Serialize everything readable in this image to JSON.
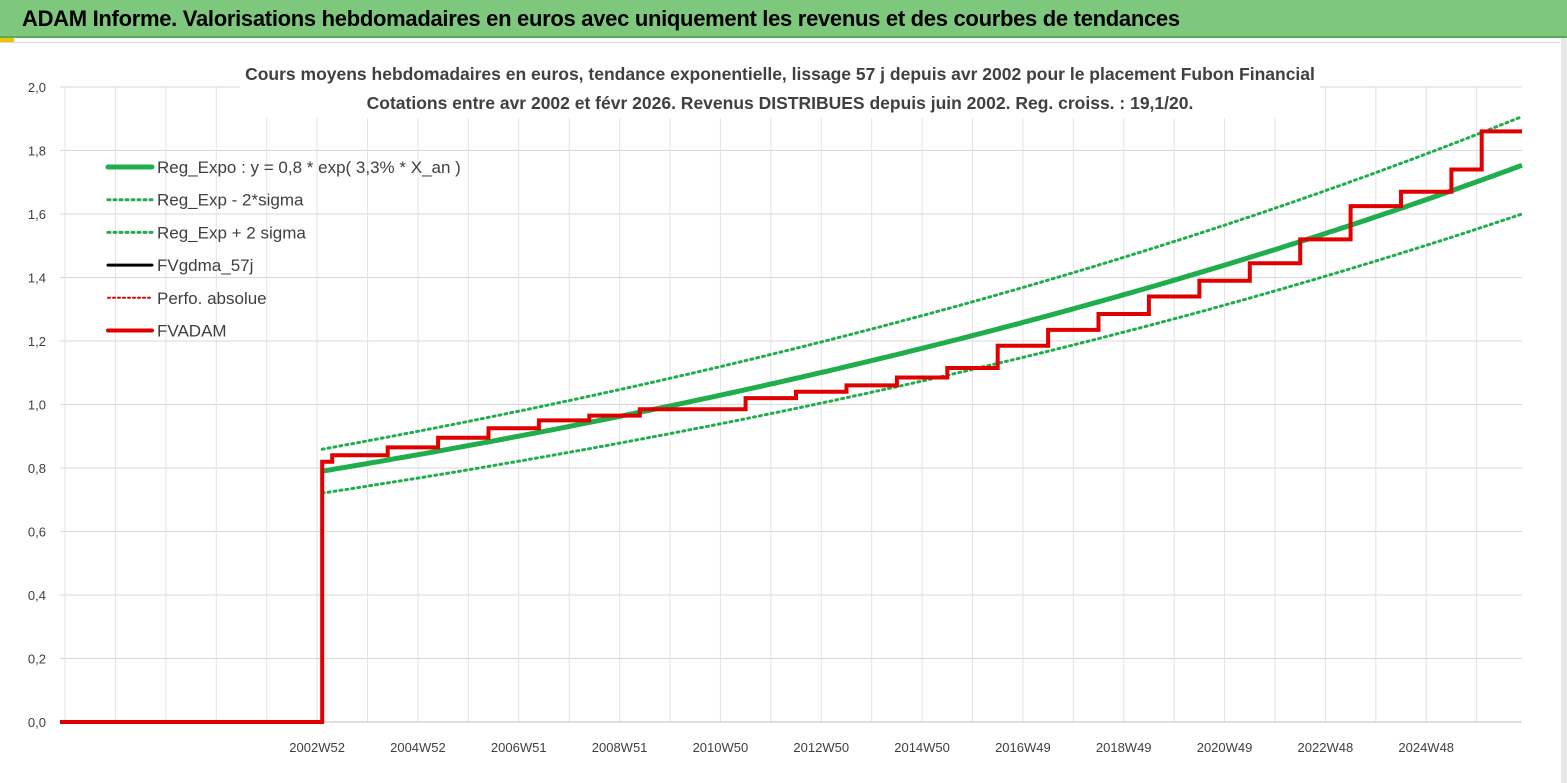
{
  "header": {
    "title": "ADAM Informe. Valorisations hebdomadaires en euros avec uniquement les revenus et des courbes de tendances"
  },
  "chart_data": {
    "type": "line",
    "title_line1": "Cours moyens hebdomadaires en euros, tendance exponentielle, lissage 57 j depuis avr 2002 pour le placement Fubon Financial",
    "title_line2": "Cotations entre avr 2002 et févr 2026. Revenus DISTRIBUES depuis juin 2002. Reg. croiss. : 19,1/20.",
    "ylim": [
      0,
      2
    ],
    "y_ticks": [
      "0,0",
      "0,2",
      "0,4",
      "0,6",
      "0,8",
      "1,0",
      "1,2",
      "1,4",
      "1,6",
      "1,8",
      "2,0"
    ],
    "x_range": [
      1997.9,
      2026.9
    ],
    "x_tick_labels": [
      "2002W52",
      "2004W52",
      "2006W51",
      "2008W51",
      "2010W50",
      "2012W50",
      "2014W50",
      "2016W49",
      "2018W49",
      "2020W49",
      "2022W48",
      "2024W48"
    ],
    "x_tick_positions": [
      2003.0,
      2005.0,
      2007.0,
      2009.0,
      2011.0,
      2013.0,
      2015.0,
      2017.0,
      2019.0,
      2021.0,
      2023.0,
      2025.0
    ],
    "grid": true,
    "legend_position": "top-left",
    "colors": {
      "reg": "#1fae4b",
      "sigma": "#1fae4b",
      "fvgdma": "#000000",
      "perfo": "#e00000",
      "fvadam": "#e00000"
    },
    "regression": {
      "a": 0.79,
      "rate": 0.0335,
      "t0": 2003.1,
      "x_start": 2003.1,
      "x_end": 2026.9,
      "sigma_factor": 0.0875
    },
    "series": [
      {
        "name": "Reg_Expo : y = 0,8 * exp( 3,3% *  X_an )",
        "key": "reg"
      },
      {
        "name": "Reg_Exp - 2*sigma",
        "key": "lower"
      },
      {
        "name": "Reg_Exp + 2 sigma",
        "key": "upper"
      },
      {
        "name": "FVgdma_57j",
        "key": "fvgdma"
      },
      {
        "name": "Perfo. absolue",
        "key": "perfo"
      },
      {
        "name": "FVADAM",
        "key": "fvadam",
        "baseline": {
          "x": [
            1997.9,
            2003.1
          ],
          "y": [
            0,
            0
          ]
        },
        "steps": [
          {
            "x": 2003.1,
            "y": 0.82
          },
          {
            "x": 2003.3,
            "y": 0.84
          },
          {
            "x": 2004.4,
            "y": 0.865
          },
          {
            "x": 2005.4,
            "y": 0.895
          },
          {
            "x": 2006.4,
            "y": 0.925
          },
          {
            "x": 2007.4,
            "y": 0.95
          },
          {
            "x": 2008.4,
            "y": 0.965
          },
          {
            "x": 2009.4,
            "y": 0.985
          },
          {
            "x": 2011.5,
            "y": 1.02
          },
          {
            "x": 2012.5,
            "y": 1.04
          },
          {
            "x": 2013.5,
            "y": 1.06
          },
          {
            "x": 2014.5,
            "y": 1.085
          },
          {
            "x": 2015.5,
            "y": 1.115
          },
          {
            "x": 2016.5,
            "y": 1.185
          },
          {
            "x": 2017.5,
            "y": 1.235
          },
          {
            "x": 2018.5,
            "y": 1.285
          },
          {
            "x": 2019.5,
            "y": 1.34
          },
          {
            "x": 2020.5,
            "y": 1.39
          },
          {
            "x": 2021.5,
            "y": 1.445
          },
          {
            "x": 2022.5,
            "y": 1.52
          },
          {
            "x": 2023.5,
            "y": 1.625
          },
          {
            "x": 2024.5,
            "y": 1.67
          },
          {
            "x": 2025.5,
            "y": 1.74
          },
          {
            "x": 2026.1,
            "y": 1.86
          }
        ],
        "x_end": 2026.9
      }
    ]
  }
}
